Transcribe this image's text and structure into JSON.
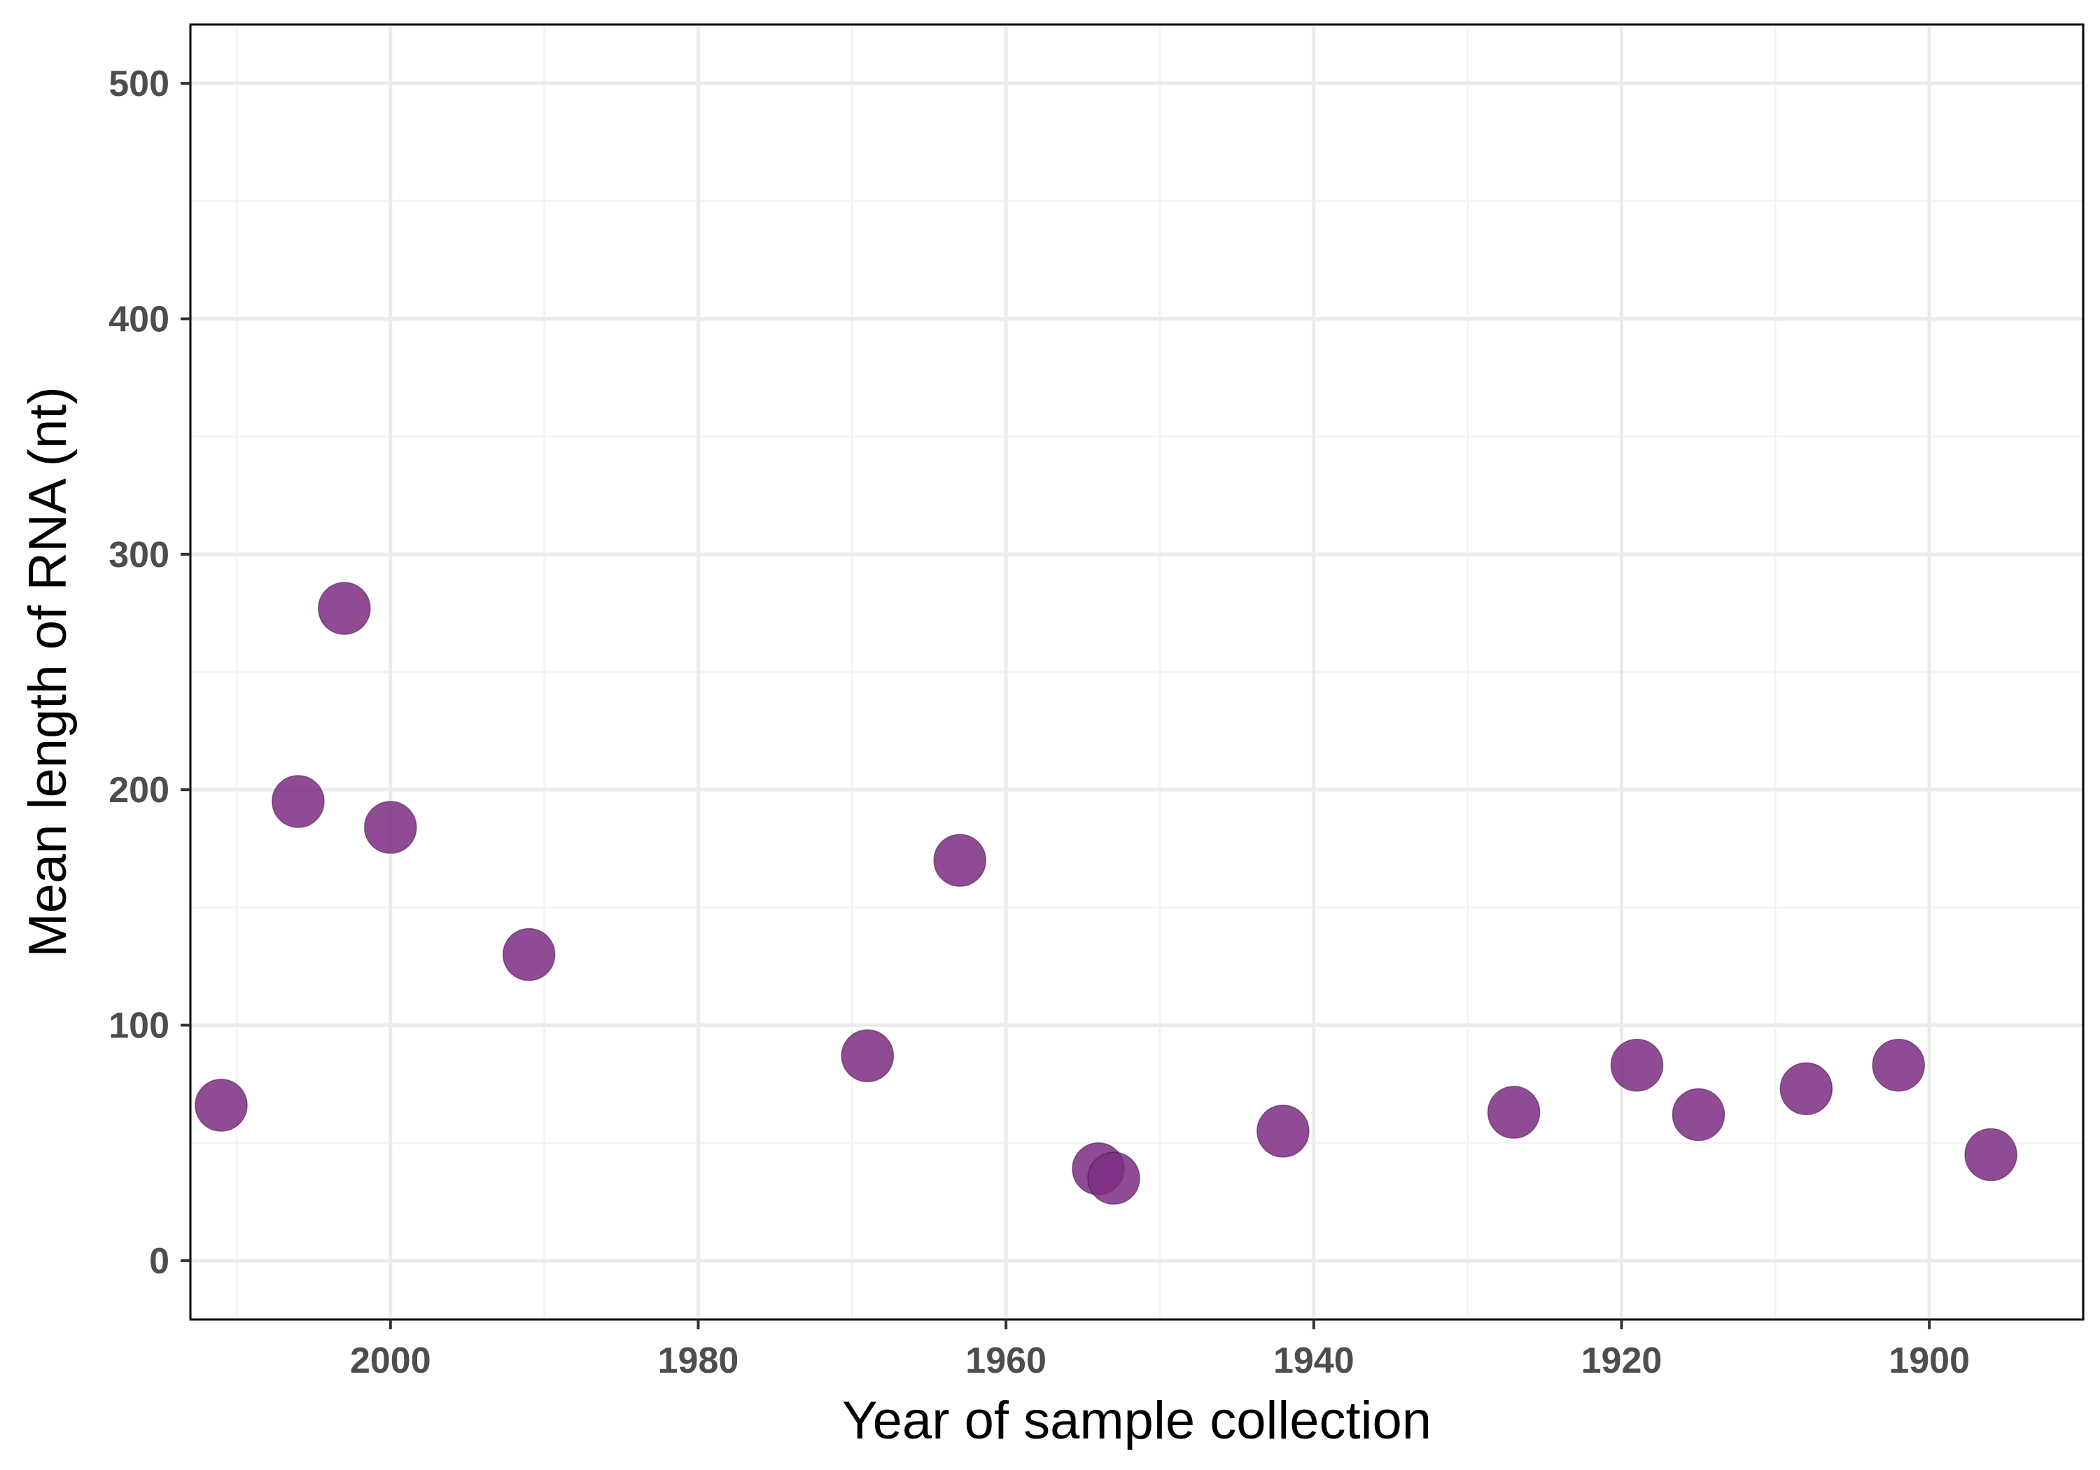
{
  "chart_data": {
    "type": "scatter",
    "title": "",
    "xlabel": "Year of sample collection",
    "ylabel": "Mean length of RNA (nt)",
    "x_reversed": true,
    "xlim": [
      2013,
      1890
    ],
    "ylim": [
      -25,
      525
    ],
    "x_ticks": [
      2000,
      1980,
      1960,
      1940,
      1920,
      1900
    ],
    "x_tick_labels": [
      "2000",
      "1980",
      "1960",
      "1940",
      "1920",
      "1900"
    ],
    "y_ticks": [
      0,
      100,
      200,
      300,
      400,
      500
    ],
    "y_tick_labels": [
      "0",
      "100",
      "200",
      "300",
      "400",
      "500"
    ],
    "grid": true,
    "legend": "none",
    "point_color": "#7b2d82",
    "point_stroke": "#4a1650",
    "series": [
      {
        "x": [
          2011,
          2006,
          2003,
          2000,
          1991,
          1969,
          1963,
          1954,
          1953,
          1942,
          1927,
          1919,
          1915,
          1908,
          1902,
          1896
        ],
        "y": [
          66,
          195,
          277,
          184,
          130,
          87,
          170,
          39,
          35,
          55,
          63,
          83,
          62,
          73,
          83,
          45
        ]
      }
    ]
  }
}
